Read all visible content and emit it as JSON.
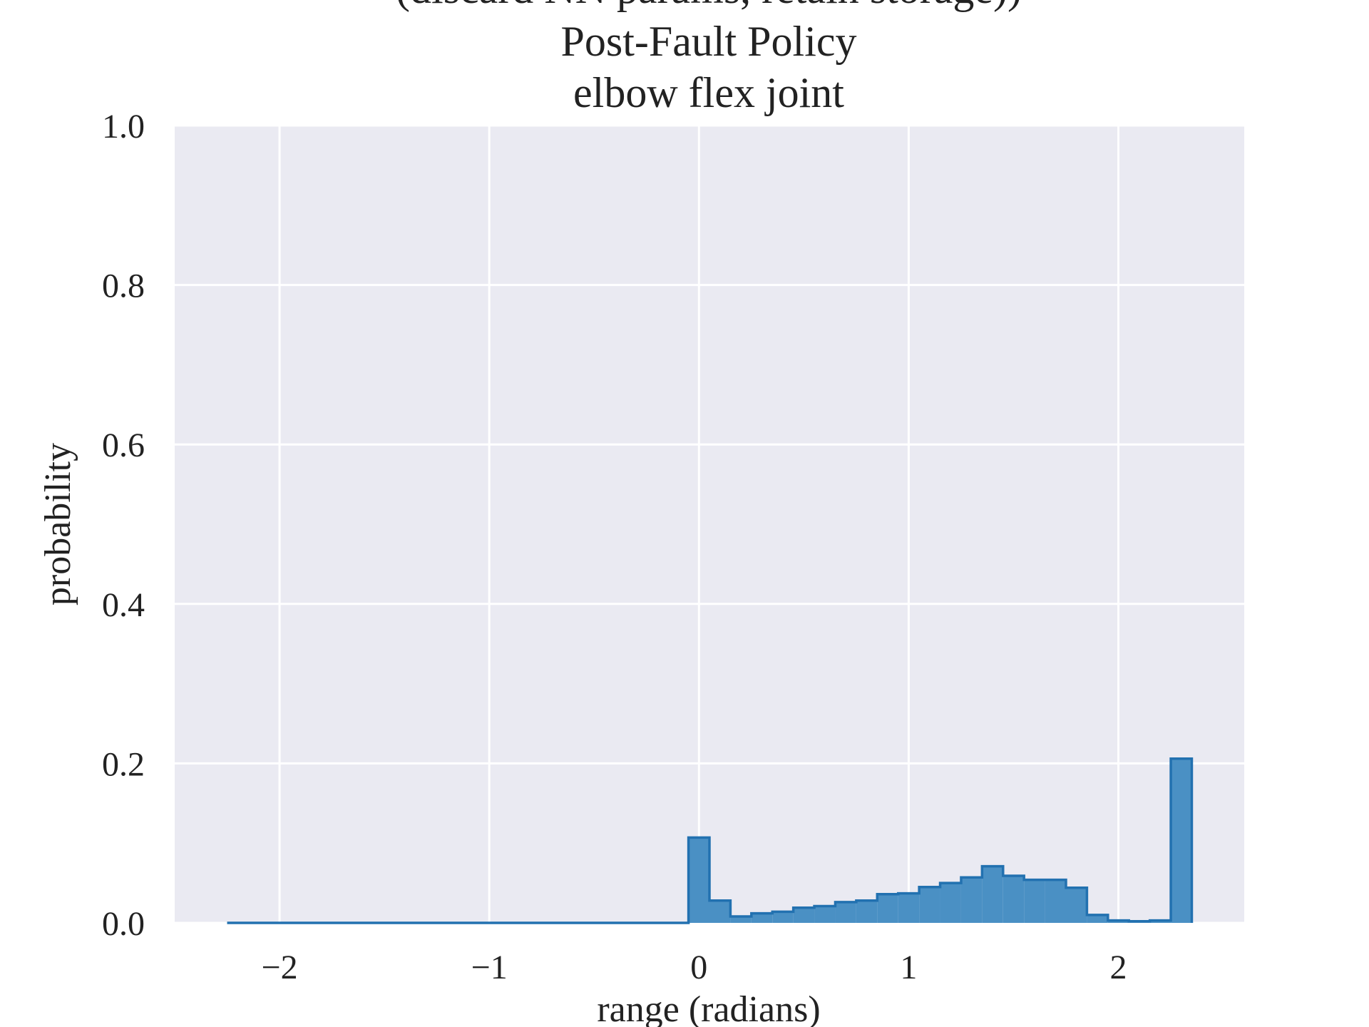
{
  "chart_data": {
    "type": "bar",
    "title_lines": [
      "(discard NN params, retain storage))",
      "Post-Fault Policy",
      "elbow flex joint"
    ],
    "xlabel": "range (radians)",
    "ylabel": "probability",
    "xlim": [
      -2.5,
      2.6
    ],
    "ylim": [
      0,
      1.0
    ],
    "xticks": [
      -2,
      -1,
      0,
      1,
      2
    ],
    "xtick_labels": [
      "−2",
      "−1",
      "0",
      "1",
      "2"
    ],
    "yticks": [
      0,
      0.2,
      0.4,
      0.6,
      0.8,
      1.0
    ],
    "ytick_labels": [
      "0.0",
      "0.2",
      "0.4",
      "0.6",
      "0.8",
      "1.0"
    ],
    "grid": true,
    "legend": "none",
    "bin_edges": [
      -2.25,
      -2.15,
      -2.05,
      -1.95,
      -1.85,
      -1.75,
      -1.65,
      -1.55,
      -1.45,
      -1.35,
      -1.25,
      -1.15,
      -1.05,
      -0.95,
      -0.85,
      -0.75,
      -0.65,
      -0.55,
      -0.45,
      -0.35,
      -0.25,
      -0.15,
      -0.05,
      0.05,
      0.15,
      0.25,
      0.35,
      0.45,
      0.55,
      0.65,
      0.75,
      0.85,
      0.95,
      1.05,
      1.15,
      1.25,
      1.35,
      1.45,
      1.55,
      1.65,
      1.75,
      1.85,
      1.95,
      2.05,
      2.15,
      2.25,
      2.35
    ],
    "values": [
      0,
      0,
      0,
      0,
      0,
      0,
      0,
      0,
      0,
      0,
      0,
      0,
      0,
      0,
      0,
      0,
      0,
      0,
      0,
      0,
      0,
      0,
      0.107,
      0.028,
      0.008,
      0.012,
      0.014,
      0.019,
      0.021,
      0.026,
      0.028,
      0.036,
      0.037,
      0.045,
      0.05,
      0.057,
      0.071,
      0.059,
      0.054,
      0.054,
      0.044,
      0.01,
      0.003,
      0.002,
      0.003,
      0.206
    ],
    "colors": {
      "bar_fill": "#4a90c4",
      "bar_edge": "#2271b0",
      "plot_bg": "#eaeaf2",
      "grid": "#ffffff"
    }
  }
}
